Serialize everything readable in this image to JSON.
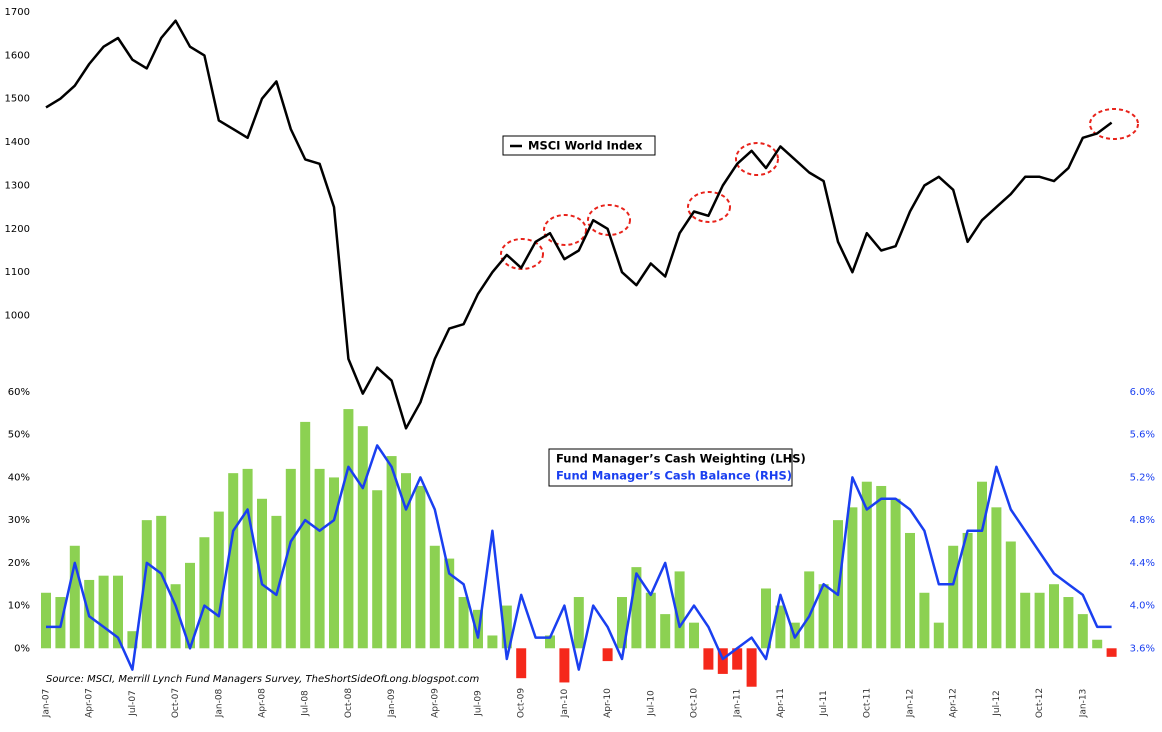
{
  "chart_data": {
    "type": "bar",
    "categories": [
      "Jan-07",
      null,
      null,
      "Apr-07",
      null,
      null,
      "Jul-07",
      null,
      null,
      "Oct-07",
      null,
      null,
      "Jan-08",
      null,
      null,
      "Apr-08",
      null,
      null,
      "Jul-08",
      null,
      null,
      "Oct-08",
      null,
      null,
      "Jan-09",
      null,
      null,
      "Apr-09",
      null,
      null,
      "Jul-09",
      null,
      null,
      "Oct-09",
      null,
      null,
      "Jan-10",
      null,
      null,
      "Apr-10",
      null,
      null,
      "Jul-10",
      null,
      null,
      "Oct-10",
      null,
      null,
      "Jan-11",
      null,
      null,
      "Apr-11",
      null,
      null,
      "Jul-11",
      null,
      null,
      "Oct-11",
      null,
      null,
      "Jan-12",
      null,
      null,
      "Apr-12",
      null,
      null,
      "Jul-12",
      null,
      null,
      "Oct-12",
      null,
      null,
      "Jan-13",
      null,
      null
    ],
    "series": [
      {
        "name": "Fund Manager’s Cash Weighting (LHS)",
        "type": "bar",
        "axis": "y",
        "color": "#8cd152",
        "negative_color": "#f5281b",
        "values": [
          13,
          12,
          24,
          16,
          17,
          17,
          4,
          30,
          31,
          15,
          20,
          26,
          32,
          41,
          42,
          35,
          31,
          42,
          53,
          42,
          40,
          56,
          52,
          37,
          45,
          41,
          38,
          24,
          21,
          12,
          9,
          3,
          10,
          -7,
          0,
          3,
          -8,
          12,
          0,
          -3,
          12,
          19,
          13,
          8,
          18,
          6,
          -5,
          -6,
          -5,
          -9,
          14,
          10,
          6,
          18,
          15,
          30,
          33,
          39,
          38,
          35,
          27,
          13,
          6,
          24,
          27,
          39,
          33,
          25,
          13,
          13,
          15,
          12,
          8,
          2,
          -2
        ]
      },
      {
        "name": "Fund Manager’s Cash Balance (RHS)",
        "type": "line",
        "axis": "y2",
        "color": "#1a3ff0",
        "values": [
          3.8,
          3.8,
          4.4,
          3.9,
          3.8,
          3.7,
          3.4,
          4.4,
          4.3,
          4.0,
          3.6,
          4.0,
          3.9,
          4.7,
          4.9,
          4.2,
          4.1,
          4.6,
          4.8,
          4.7,
          4.8,
          5.3,
          5.1,
          5.5,
          5.3,
          4.9,
          5.2,
          4.9,
          4.3,
          4.2,
          3.7,
          4.7,
          3.5,
          4.1,
          3.7,
          3.7,
          4.0,
          3.4,
          4.0,
          3.8,
          3.5,
          4.3,
          4.1,
          4.4,
          3.8,
          4.0,
          3.8,
          3.5,
          3.6,
          3.7,
          3.5,
          4.1,
          3.7,
          3.9,
          4.2,
          4.1,
          5.2,
          4.9,
          5.0,
          5.0,
          4.9,
          4.7,
          4.2,
          4.2,
          4.7,
          4.7,
          5.3,
          4.9,
          4.7,
          4.5,
          4.3,
          4.2,
          4.1,
          3.8,
          3.8
        ]
      },
      {
        "name": "MSCI World Index",
        "type": "line",
        "axis": "y3",
        "color": "#000000",
        "values": [
          1480,
          1500,
          1530,
          1580,
          1620,
          1640,
          1590,
          1570,
          1640,
          1680,
          1620,
          1600,
          1450,
          1430,
          1410,
          1500,
          1540,
          1430,
          1360,
          1350,
          1250,
          900,
          820,
          880,
          850,
          740,
          800,
          900,
          970,
          980,
          1050,
          1100,
          1140,
          1110,
          1170,
          1190,
          1130,
          1150,
          1220,
          1200,
          1100,
          1070,
          1120,
          1090,
          1190,
          1240,
          1230,
          1300,
          1350,
          1380,
          1340,
          1390,
          1360,
          1330,
          1310,
          1170,
          1100,
          1190,
          1150,
          1160,
          1240,
          1300,
          1320,
          1290,
          1170,
          1220,
          1250,
          1280,
          1320,
          1320,
          1310,
          1340,
          1410,
          1420,
          1445
        ]
      }
    ],
    "ylim": [
      -10,
      60
    ],
    "yticks": [
      {
        "value": 0,
        "label": "0%"
      },
      {
        "value": 10,
        "label": "10%"
      },
      {
        "value": 20,
        "label": "20%"
      },
      {
        "value": 30,
        "label": "30%"
      },
      {
        "value": 40,
        "label": "40%"
      },
      {
        "value": 50,
        "label": "50%"
      },
      {
        "value": 60,
        "label": "60%"
      }
    ],
    "y2lim": [
      3.2,
      6.0
    ],
    "y2ticks": [
      {
        "value": 3.6,
        "label": "3.6%"
      },
      {
        "value": 4.0,
        "label": "4.0%"
      },
      {
        "value": 4.4,
        "label": "4.4%"
      },
      {
        "value": 4.8,
        "label": "4.8%"
      },
      {
        "value": 5.2,
        "label": "5.2%"
      },
      {
        "value": 5.6,
        "label": "5.6%"
      },
      {
        "value": 6.0,
        "label": "6.0%"
      }
    ],
    "y3lim": [
      690,
      1700
    ],
    "y3ticks": [
      1000,
      1100,
      1200,
      1300,
      1400,
      1500,
      1600,
      1700
    ],
    "grid": false,
    "annotation": "Source: MSCI, Merrill Lynch Fund Managers Survey, TheShortSideOfLong.blogspot.com"
  }
}
